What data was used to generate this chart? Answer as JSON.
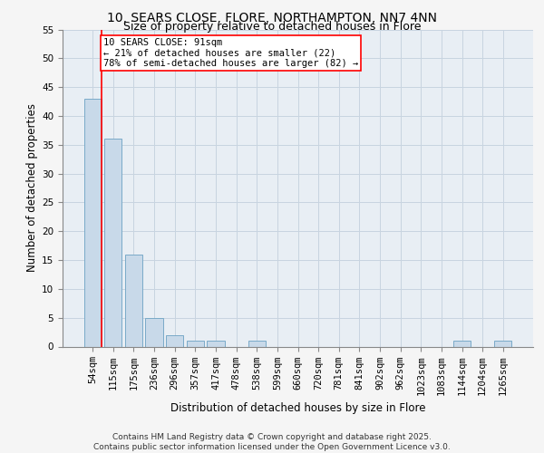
{
  "title_line1": "10, SEARS CLOSE, FLORE, NORTHAMPTON, NN7 4NN",
  "title_line2": "Size of property relative to detached houses in Flore",
  "xlabel": "Distribution of detached houses by size in Flore",
  "ylabel": "Number of detached properties",
  "categories": [
    "54sqm",
    "115sqm",
    "175sqm",
    "236sqm",
    "296sqm",
    "357sqm",
    "417sqm",
    "478sqm",
    "538sqm",
    "599sqm",
    "660sqm",
    "720sqm",
    "781sqm",
    "841sqm",
    "902sqm",
    "962sqm",
    "1023sqm",
    "1083sqm",
    "1144sqm",
    "1204sqm",
    "1265sqm"
  ],
  "values": [
    43,
    36,
    16,
    5,
    2,
    1,
    1,
    0,
    1,
    0,
    0,
    0,
    0,
    0,
    0,
    0,
    0,
    0,
    1,
    0,
    1
  ],
  "bar_color": "#c8d9e9",
  "bar_edge_color": "#7aaac8",
  "grid_color": "#c8d4e0",
  "background_color": "#e8eef4",
  "fig_background": "#f5f5f5",
  "annotation_text": "10 SEARS CLOSE: 91sqm\n← 21% of detached houses are smaller (22)\n78% of semi-detached houses are larger (82) →",
  "red_line_x": 0.42,
  "ylim": [
    0,
    55
  ],
  "yticks": [
    0,
    5,
    10,
    15,
    20,
    25,
    30,
    35,
    40,
    45,
    50,
    55
  ],
  "footer": "Contains HM Land Registry data © Crown copyright and database right 2025.\nContains public sector information licensed under the Open Government Licence v3.0.",
  "title_fontsize": 10,
  "subtitle_fontsize": 9,
  "axis_label_fontsize": 8.5,
  "tick_fontsize": 7.5,
  "annotation_fontsize": 7.5,
  "footer_fontsize": 6.5
}
